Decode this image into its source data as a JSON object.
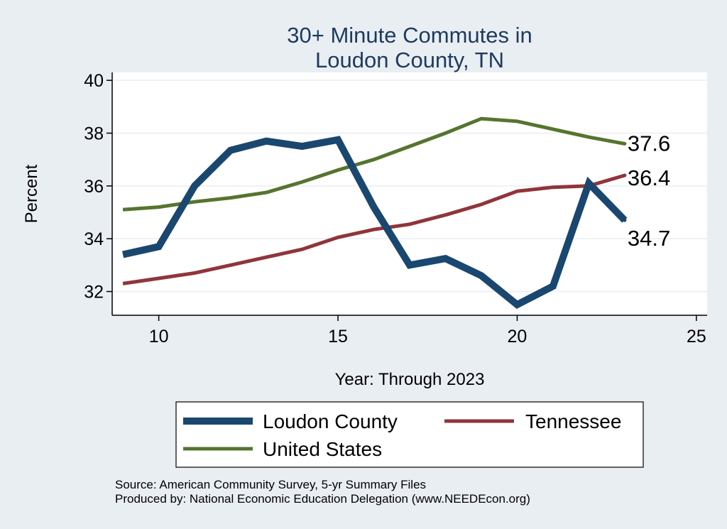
{
  "chart_data": {
    "type": "line",
    "title": [
      "30+ Minute Commutes in",
      "Loudon County, TN"
    ],
    "xlabel": "Year: Through 2023",
    "ylabel": "Percent",
    "xlim": [
      8.7,
      25.3
    ],
    "ylim": [
      31.1,
      40.3
    ],
    "xticks": [
      10,
      15,
      20,
      25
    ],
    "yticks": [
      32,
      34,
      36,
      38,
      40
    ],
    "grid": true,
    "legend": "bottom",
    "series": [
      {
        "name": "Loudon County",
        "color": "#1a476f",
        "x": [
          9,
          10,
          11,
          12,
          13,
          14,
          15,
          16,
          17,
          18,
          19,
          20,
          21,
          22,
          23
        ],
        "values": [
          33.4,
          33.7,
          36.0,
          37.35,
          37.7,
          37.5,
          37.75,
          35.2,
          33.0,
          33.25,
          32.6,
          31.5,
          32.2,
          36.1,
          34.7
        ],
        "end_label": "34.7"
      },
      {
        "name": "Tennessee",
        "color": "#90353b",
        "x": [
          9,
          10,
          11,
          12,
          13,
          14,
          15,
          16,
          17,
          18,
          19,
          20,
          21,
          22,
          23
        ],
        "values": [
          32.3,
          32.5,
          32.7,
          33.0,
          33.3,
          33.6,
          34.05,
          34.35,
          34.55,
          34.9,
          35.3,
          35.8,
          35.95,
          36.0,
          36.4
        ],
        "end_label": "36.4"
      },
      {
        "name": "United States",
        "color": "#55752f",
        "x": [
          9,
          10,
          11,
          12,
          13,
          14,
          15,
          16,
          17,
          18,
          19,
          20,
          21,
          22,
          23
        ],
        "values": [
          35.1,
          35.2,
          35.4,
          35.55,
          35.75,
          36.15,
          36.6,
          37.0,
          37.5,
          38.0,
          38.55,
          38.45,
          38.15,
          37.85,
          37.6
        ],
        "end_label": "37.6"
      }
    ],
    "source": [
      "Source: American Community Survey, 5-yr Summary Files",
      "Produced by: National Economic Education Delegation (www.NEEDEcon.org)"
    ]
  }
}
